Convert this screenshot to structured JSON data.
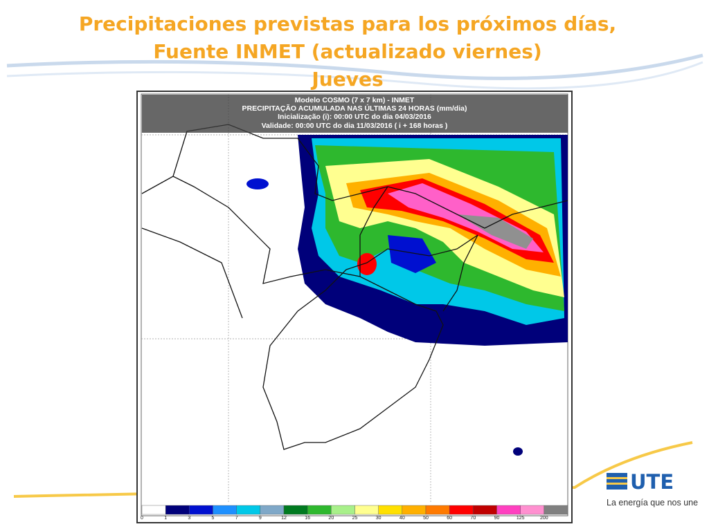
{
  "title": {
    "lines": [
      "Precipitaciones previstas para los próximos días,",
      "Fuente INMET (actualizado viernes)",
      "Jueves"
    ]
  },
  "map": {
    "header": [
      "Modelo COSMO (7 x 7 km) - INMET",
      "PRECIPITAÇÃO ACUMULADA NAS ÚLTIMAS 24 HORAS (mm/dia)",
      "Inicialização (i): 00:00 UTC do dia 04/03/2016",
      "Validade: 00:00 UTC do dia 11/03/2016 ( i + 168 horas )"
    ]
  },
  "legend": {
    "labels": [
      "0",
      "1",
      "3",
      "5",
      "7",
      "9",
      "12",
      "16",
      "20",
      "25",
      "30",
      "40",
      "50",
      "60",
      "70",
      "90",
      "125",
      "200"
    ],
    "colors": [
      "#ffffff",
      "#00007a",
      "#0010d0",
      "#1e90ff",
      "#00c8e8",
      "#7fa8c8",
      "#007a20",
      "#2eb82e",
      "#a8f08a",
      "#ffff90",
      "#ffe000",
      "#ffb000",
      "#ff7a00",
      "#ff0000",
      "#c00000",
      "#ff40c0",
      "#ff90d0",
      "#808080"
    ]
  },
  "logo": {
    "name": "UTE",
    "tagline": "La energía que nos une"
  }
}
